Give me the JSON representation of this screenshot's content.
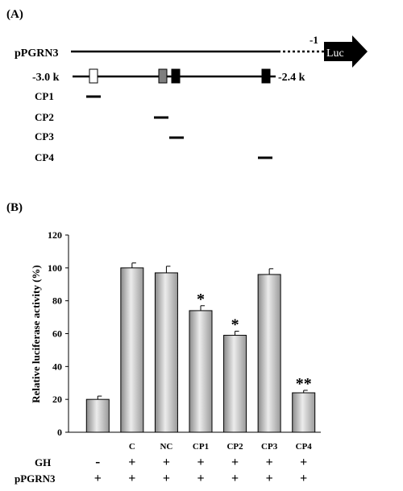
{
  "panel_a": {
    "label": "(A)",
    "construct_label": "pPGRN3",
    "minus_one": "-1",
    "reporter": "Luc",
    "region_start": "-3.0 k",
    "region_end": "-2.4 k",
    "probes": [
      "CP1",
      "CP2",
      "CP3",
      "CP4"
    ],
    "box_colors": [
      "#ffffff",
      "#7f7f7f",
      "#000000",
      "#000000"
    ]
  },
  "panel_b": {
    "label": "(B)"
  },
  "chart_data": {
    "type": "bar",
    "ylabel": "Relative luciferase activity (%)",
    "ylim": [
      0,
      120
    ],
    "yticks": [
      0,
      20,
      40,
      60,
      80,
      100,
      120
    ],
    "categories": [
      "",
      "C",
      "NC",
      "CP1",
      "CP2",
      "CP3",
      "CP4"
    ],
    "values": [
      20,
      100,
      97,
      74,
      59,
      96,
      24
    ],
    "errors": [
      2,
      3,
      4,
      3,
      2.5,
      3.5,
      1.5
    ],
    "significance": [
      "",
      "",
      "",
      "*",
      "*",
      "",
      "**"
    ],
    "conditions": [
      {
        "name": "GH",
        "values": [
          "-",
          "+",
          "+",
          "+",
          "+",
          "+",
          "+"
        ]
      },
      {
        "name": "pPGRN3",
        "values": [
          "+",
          "+",
          "+",
          "+",
          "+",
          "+",
          "+"
        ]
      }
    ],
    "bar_gradient": [
      "#8a8a8a",
      "#ececec",
      "#9a9a9a"
    ]
  }
}
